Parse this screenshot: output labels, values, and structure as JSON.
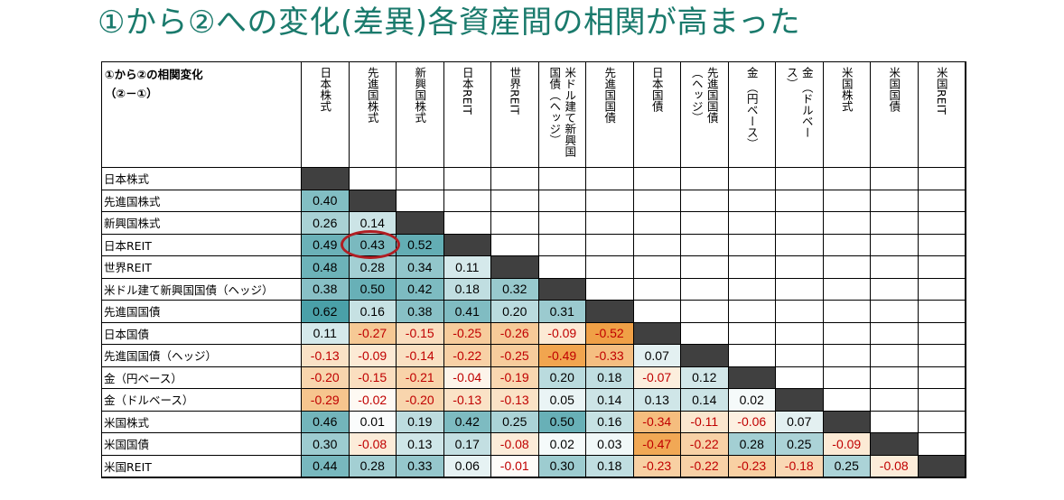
{
  "title": "①から②への変化(差異)各資産間の相関が高まった",
  "table_caption": "①から②の相関変化",
  "table_subcaption": "（②－①）",
  "colors": {
    "title": "#1a7a6c",
    "diagonal": "#404040",
    "highlight_circle": "#b01e23",
    "negative_text": "#c00000"
  },
  "chart_data": {
    "type": "heatmap",
    "title": "①から②の相関変化",
    "subtitle": "（②－①）",
    "columns": [
      "日本株式",
      "先進国株式",
      "新興国株式",
      "日本REIT",
      "世界REIT",
      "米ドル建て新興国\n国債（ヘッジ）",
      "先進国国債",
      "日本国債",
      "先進国国債\n（ヘッジ）",
      "金 （円ベース）",
      "金 （ドルベー\nス）",
      "米国株式",
      "米国国債",
      "米国REIT"
    ],
    "rows": [
      "日本株式",
      "先進国株式",
      "新興国株式",
      "日本REIT",
      "世界REIT",
      "米ドル建て新興国国債（ヘッジ）",
      "先進国国債",
      " 日本国債",
      "先進国国債（ヘッジ）",
      " 金（円ベース）",
      " 金（ドルベース）",
      "米国株式",
      "米国国債",
      "米国REIT"
    ],
    "values": [
      [],
      [
        "0.40"
      ],
      [
        "0.26",
        "0.14"
      ],
      [
        "0.49",
        "0.43",
        "0.52"
      ],
      [
        "0.48",
        "0.28",
        "0.34",
        "0.11"
      ],
      [
        "0.38",
        "0.50",
        "0.42",
        "0.18",
        "0.32"
      ],
      [
        "0.62",
        "0.16",
        "0.38",
        "0.41",
        "0.20",
        "0.31"
      ],
      [
        "0.11",
        "-0.27",
        "-0.15",
        "-0.25",
        "-0.26",
        "-0.09",
        "-0.52"
      ],
      [
        "-0.13",
        "-0.09",
        "-0.14",
        "-0.22",
        "-0.25",
        "-0.49",
        "-0.33",
        "0.07"
      ],
      [
        "-0.20",
        "-0.15",
        "-0.21",
        "-0.04",
        "-0.19",
        "0.20",
        "0.18",
        "-0.07",
        "0.12"
      ],
      [
        "-0.29",
        "-0.02",
        "-0.20",
        "-0.13",
        "-0.13",
        "0.05",
        "0.14",
        "0.13",
        "0.14",
        "0.02"
      ],
      [
        "0.46",
        "0.01",
        "0.19",
        "0.42",
        "0.25",
        "0.50",
        "0.16",
        "-0.34",
        "-0.11",
        "-0.06",
        "0.07"
      ],
      [
        "0.30",
        "-0.08",
        "0.13",
        "0.17",
        "-0.08",
        "0.02",
        "0.03",
        "-0.47",
        "-0.22",
        "0.28",
        "0.25",
        "-0.09"
      ],
      [
        "0.44",
        "0.28",
        "0.33",
        "0.06",
        "-0.01",
        "0.30",
        "0.18",
        "-0.23",
        "-0.22",
        "-0.23",
        "-0.18",
        "0.25",
        "-0.08"
      ]
    ],
    "highlighted_cell": {
      "row": 3,
      "col": 1,
      "value": "0.43"
    },
    "color_scale": "positive values teal, negative values orange, intensity by magnitude"
  }
}
